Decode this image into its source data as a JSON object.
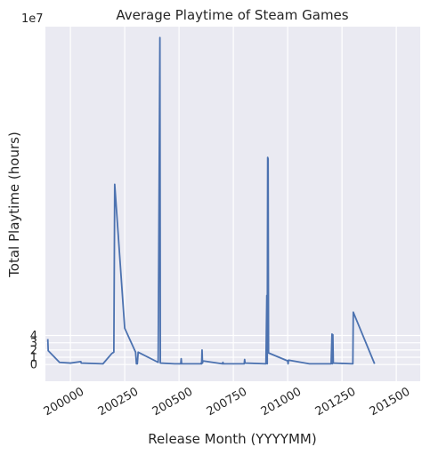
{
  "chart_data": {
    "type": "line",
    "title": "Average Playtime of Steam Games",
    "xlabel": "Release Month (YYYYMM)",
    "ylabel": "Total Playtime (hours)",
    "y_offset_label": "1e7",
    "xlim": [
      199885,
      201610
    ],
    "ylim": [
      -2.3,
      46.5
    ],
    "y_scale_factor": 10000000,
    "x_ticks": [
      200000,
      200250,
      200500,
      200750,
      201000,
      201250,
      201500
    ],
    "x_tick_labels": [
      "200000",
      "200250",
      "200500",
      "200750",
      201000,
      "201250",
      "201500"
    ],
    "y_ticks": [
      0,
      1,
      2,
      3,
      4
    ],
    "y_tick_labels": [
      "0",
      "1",
      "2",
      "3",
      "4"
    ],
    "grid": true,
    "background": "#eaeaf2",
    "line_color": "#4c72b0",
    "series": [
      {
        "name": "",
        "points": [
          [
            199896,
            3.5
          ],
          [
            199898,
            1.9
          ],
          [
            199950,
            0.3
          ],
          [
            200000,
            0.2
          ],
          [
            200048,
            0.4
          ],
          [
            200050,
            0.2
          ],
          [
            200150,
            0.1
          ],
          [
            200190,
            1.5
          ],
          [
            200200,
            1.7
          ],
          [
            200204,
            24.8
          ],
          [
            200250,
            5.0
          ],
          [
            200300,
            1.7
          ],
          [
            200304,
            0.1
          ],
          [
            200308,
            0.1
          ],
          [
            200312,
            1.7
          ],
          [
            200404,
            0.3
          ],
          [
            200412,
            45.0
          ],
          [
            200414,
            0.2
          ],
          [
            200480,
            0.1
          ],
          [
            200508,
            0.1
          ],
          [
            200510,
            0.8
          ],
          [
            200512,
            0.1
          ],
          [
            200600,
            0.1
          ],
          [
            200602,
            0.2
          ],
          [
            200604,
            0.1
          ],
          [
            200606,
            2.0
          ],
          [
            200608,
            0.2
          ],
          [
            200610,
            0.5
          ],
          [
            200700,
            0.1
          ],
          [
            200702,
            0.3
          ],
          [
            200704,
            0.1
          ],
          [
            200800,
            0.1
          ],
          [
            200802,
            0.7
          ],
          [
            200804,
            0.2
          ],
          [
            200900,
            0.1
          ],
          [
            200904,
            9.5
          ],
          [
            200906,
            0.1
          ],
          [
            200908,
            28.5
          ],
          [
            200910,
            28.3
          ],
          [
            200912,
            1.6
          ],
          [
            201000,
            0.5
          ],
          [
            201002,
            0.1
          ],
          [
            201004,
            0.6
          ],
          [
            201100,
            0.1
          ],
          [
            201200,
            0.1
          ],
          [
            201204,
            4.2
          ],
          [
            201206,
            0.1
          ],
          [
            201208,
            4.1
          ],
          [
            201210,
            0.2
          ],
          [
            201300,
            0.1
          ],
          [
            201302,
            7.2
          ],
          [
            201400,
            0.1
          ]
        ]
      }
    ]
  }
}
